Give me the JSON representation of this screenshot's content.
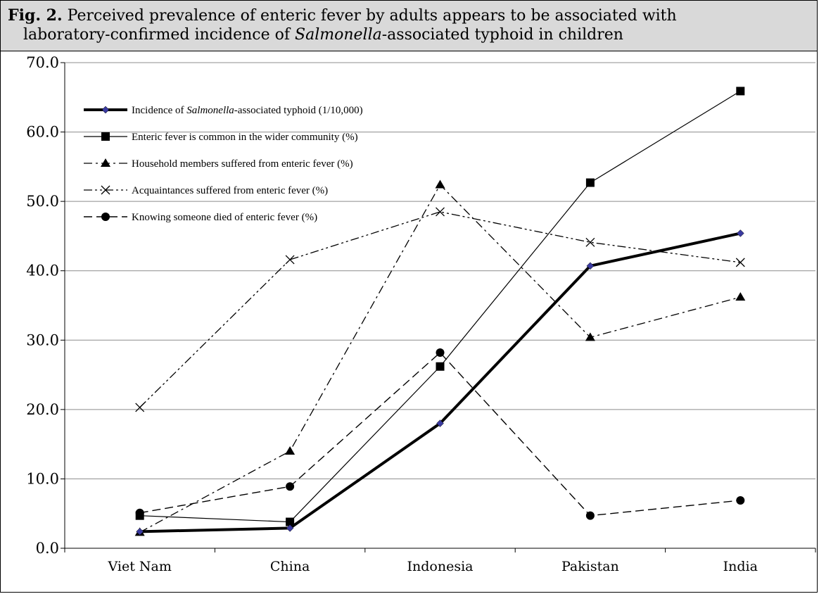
{
  "caption": {
    "label": "Fig. 2.",
    "line1_text": " Perceived prevalence of enteric fever by adults appears to be associated with",
    "line2_pre": "laboratory-confirmed incidence of ",
    "line2_italic": "Salmonella",
    "line2_post": "-associated typhoid in children"
  },
  "chart_data": {
    "type": "line",
    "categories": [
      "Viet Nam",
      "China",
      "Indonesia",
      "Pakistan",
      "India"
    ],
    "ylim": [
      0,
      70
    ],
    "yticks": [
      "0.0",
      "10.0",
      "20.0",
      "30.0",
      "40.0",
      "50.0",
      "60.0",
      "70.0"
    ],
    "grid": true,
    "legend_position": "top-left",
    "series": [
      {
        "name": "Incidence of Salmonella-associated typhoid (1/10,000)",
        "name_pre": "Incidence of ",
        "name_italic": "Salmonella",
        "name_post": "-associated typhoid (1/10,000)",
        "values": [
          2.4,
          2.9,
          18.0,
          40.7,
          45.4
        ],
        "line": "thick-solid",
        "marker": "diamond",
        "marker_color": "#3a3aa0"
      },
      {
        "name": "Enteric fever is common in the wider community (%)",
        "values": [
          4.7,
          3.8,
          26.2,
          52.7,
          65.9
        ],
        "line": "thin-solid",
        "marker": "square"
      },
      {
        "name": "Household members suffered from enteric fever (%)",
        "values": [
          2.3,
          14.0,
          52.4,
          30.4,
          36.2
        ],
        "line": "dash-dot",
        "marker": "triangle"
      },
      {
        "name": "Acquaintances suffered from enteric fever (%)",
        "values": [
          20.3,
          41.6,
          48.5,
          44.1,
          41.2
        ],
        "line": "dash-dot-dot",
        "marker": "x"
      },
      {
        "name": "Knowing someone died of enteric fever (%)",
        "values": [
          5.1,
          8.9,
          28.2,
          4.7,
          6.9
        ],
        "line": "dashed",
        "marker": "circle"
      }
    ]
  }
}
